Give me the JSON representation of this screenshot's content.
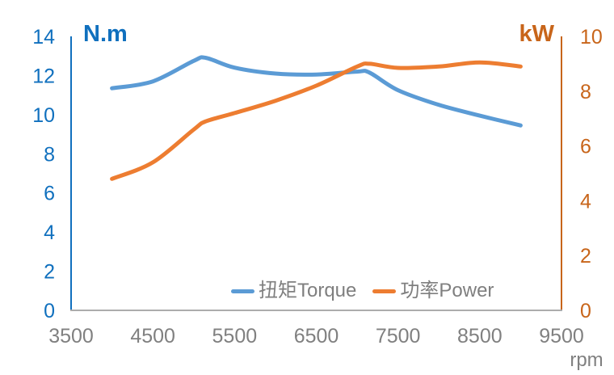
{
  "chart_data": {
    "type": "line",
    "title": "",
    "background": "#FFFFFF",
    "x": [
      4000,
      4500,
      5000,
      5150,
      5500,
      6000,
      6500,
      7000,
      7150,
      7500,
      8000,
      8500,
      9000
    ],
    "series": [
      {
        "name": "扭矩Torque",
        "axis": "left",
        "color": "#5B9BD5",
        "values": [
          11.35,
          11.7,
          12.75,
          12.9,
          12.4,
          12.1,
          12.05,
          12.2,
          12.15,
          11.25,
          10.5,
          9.95,
          9.45
        ]
      },
      {
        "name": "功率Power",
        "axis": "right",
        "color": "#ED7D31",
        "values": [
          4.8,
          5.4,
          6.6,
          6.9,
          7.2,
          7.65,
          8.2,
          8.9,
          9.0,
          8.85,
          8.9,
          9.05,
          8.9
        ]
      }
    ],
    "x_axis": {
      "label": "rpm",
      "min": 3500,
      "max": 9500,
      "step": 1000,
      "ticks": [
        3500,
        4500,
        5500,
        6500,
        7500,
        8500,
        9500
      ],
      "line_color": "#ACACAC",
      "tick_color": "#808080"
    },
    "left_axis": {
      "label": "N.m",
      "min": 0,
      "max": 14,
      "step": 2,
      "ticks": [
        0,
        2,
        4,
        6,
        8,
        10,
        12,
        14
      ],
      "color": "#1070BE"
    },
    "right_axis": {
      "label": "kW",
      "min": 0,
      "max": 10,
      "step": 2,
      "ticks": [
        0,
        2,
        4,
        6,
        8,
        10
      ],
      "color": "#C8651A"
    },
    "legend": {
      "position": "bottom-center-inside",
      "entries": [
        "扭矩Torque",
        "功率Power"
      ]
    },
    "grid": false
  }
}
